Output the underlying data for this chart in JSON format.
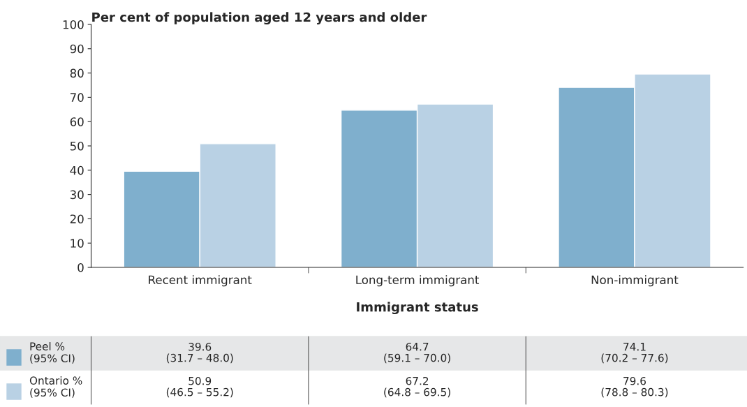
{
  "chart_data": {
    "type": "bar",
    "ylabel": "Per cent of population aged 12 years and older",
    "xlabel": "Immigrant status",
    "categories": [
      "Recent immigrant",
      "Long-term immigrant",
      "Non-immigrant"
    ],
    "series": [
      {
        "name": "Peel %\n(95% CI)",
        "color": "#7fafcd",
        "values": [
          39.6,
          64.7,
          74.1
        ],
        "value_labels": [
          "39.6\n(31.7 – 48.0)",
          "64.7\n(59.1 – 70.0)",
          "74.1\n(70.2 – 77.6)"
        ]
      },
      {
        "name": "Ontario %\n(95% CI)",
        "color": "#b9d1e4",
        "values": [
          50.9,
          67.2,
          79.6
        ],
        "value_labels": [
          "50.9\n(46.5 – 55.2)",
          "67.2\n(64.8 – 69.5)",
          "79.6\n(78.8 – 80.3)"
        ]
      }
    ],
    "ylim": [
      0,
      100
    ],
    "yticks": [
      0,
      10,
      20,
      30,
      40,
      50,
      60,
      70,
      80,
      90,
      100
    ],
    "grid": false,
    "legend": "bottom"
  }
}
